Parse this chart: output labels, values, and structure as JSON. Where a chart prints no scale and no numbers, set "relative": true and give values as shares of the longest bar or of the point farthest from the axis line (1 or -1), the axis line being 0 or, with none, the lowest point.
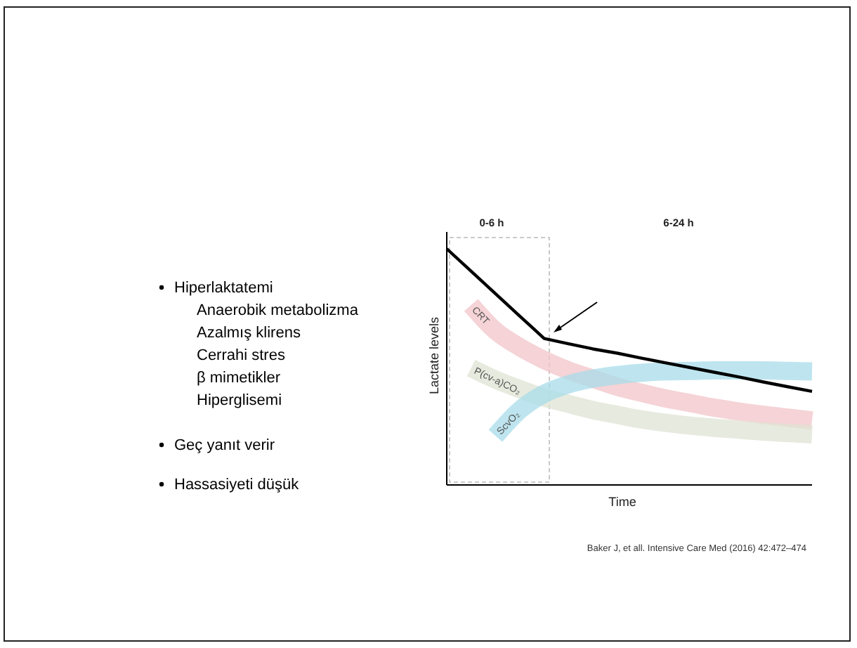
{
  "chart_data": {
    "type": "line",
    "relative": true,
    "xlabel": "Time",
    "ylabel": "Lactate levels",
    "categories": [
      null,
      null,
      null,
      null,
      null,
      null,
      null,
      null,
      null,
      null,
      null,
      null,
      null,
      null,
      null,
      null
    ],
    "series": [
      {
        "name": "CRT",
        "color": "#f2c4c8",
        "values": [
          null,
          0.762,
          0.653,
          0.584,
          0.529,
          0.485,
          0.45,
          0.416,
          0.39,
          0.366,
          0.347,
          0.327,
          0.311,
          0.297,
          0.285,
          0.273
        ]
      },
      {
        "name": "P(cv-a)CO₂",
        "color": "#dfe3d3",
        "values": [
          null,
          0.495,
          0.446,
          0.406,
          0.37,
          0.343,
          0.317,
          0.297,
          0.277,
          0.263,
          0.251,
          0.242,
          0.234,
          0.226,
          0.22,
          0.214
        ]
      },
      {
        "name": "ScvO₂",
        "color": "#a8dcea",
        "values": [
          null,
          null,
          0.208,
          0.317,
          0.386,
          0.426,
          0.45,
          0.465,
          0.475,
          0.481,
          0.483,
          0.485,
          0.485,
          0.485,
          0.483,
          0.481
        ]
      },
      {
        "color": "#000000",
        "values": [
          1.0,
          0.905,
          0.81,
          0.715,
          0.62,
          0.598,
          0.576,
          0.558,
          0.537,
          0.517,
          0.497,
          0.477,
          0.457,
          0.436,
          0.416,
          0.396
        ]
      }
    ],
    "grid": false,
    "annotations": [
      "Hiperlaktatemi",
      "Anaerobik metabolizma",
      "Azalmış klirens",
      "Cerrahi stres",
      "β mimetikler",
      "Hiperglisemi",
      "Geç yanıt verir",
      "Hassasiyeti düşük",
      "0-6 h",
      "6-24 h",
      "Baker J, et all. Intensive Care Med (2016) 42:472–474"
    ]
  }
}
